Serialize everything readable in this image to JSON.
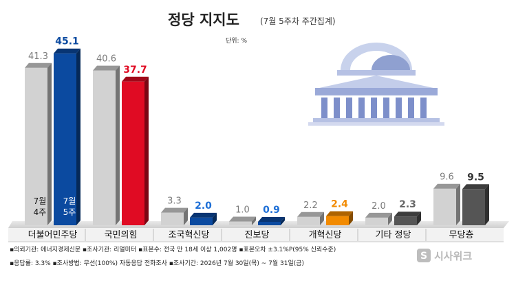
{
  "header": {
    "title": "정당 지지도",
    "subtitle": "(7월 5주차 주간집계)",
    "unit": "단위: %"
  },
  "chart_data": {
    "type": "bar",
    "categories": [
      "더불어민주당",
      "국민의힘",
      "조국혁신당",
      "진보당",
      "개혁신당",
      "기타 정당",
      "무당층"
    ],
    "series": [
      {
        "name": "7월 4주",
        "values": [
          41.3,
          40.6,
          3.3,
          1.0,
          2.2,
          2.0,
          9.6
        ],
        "labels": [
          "41.3",
          "40.6",
          "3.3",
          "1.0",
          "2.2",
          "2.0",
          "9.6"
        ]
      },
      {
        "name": "7월 5주",
        "values": [
          45.1,
          37.7,
          2.0,
          0.9,
          2.4,
          2.3,
          9.5
        ],
        "labels": [
          "45.1",
          "37.7",
          "2.0",
          "0.9",
          "2.4",
          "2.3",
          "9.5"
        ]
      }
    ],
    "week_labels": [
      [
        "7월",
        "4주"
      ],
      [
        "7월",
        "5주"
      ]
    ],
    "colors": {
      "previous": "#d2d2d2",
      "current": [
        "#0b4aa0",
        "#e00b23",
        "#0b4aa0",
        "#0b4aa0",
        "#f28a00",
        "#555555",
        "#555555"
      ],
      "current_labels": [
        "#0b4aa0",
        "#e00b23",
        "#1e6fd6",
        "#1e6fd6",
        "#f28a00",
        "#666666",
        "#333333"
      ]
    }
  },
  "footer": {
    "line1": "▪의뢰기관: 에너지경제신문  ▪조사기관: 리얼미터  ▪표본수: 전국 만 18세 이상 1,002명  ▪표본오차 ±3.1%P(95% 신뢰수준)",
    "line2": "▪응답률: 3.3%  ▪조사방법: 무선(100%) 자동응답 전화조사  ▪조사기간: 2026년 7월 30일(목) ~ 7월 31일(금)"
  },
  "logo": {
    "text": "시사위크",
    "icon": "sisaweek-logo-icon"
  },
  "illustration": {
    "icon": "national-assembly-building-icon"
  }
}
